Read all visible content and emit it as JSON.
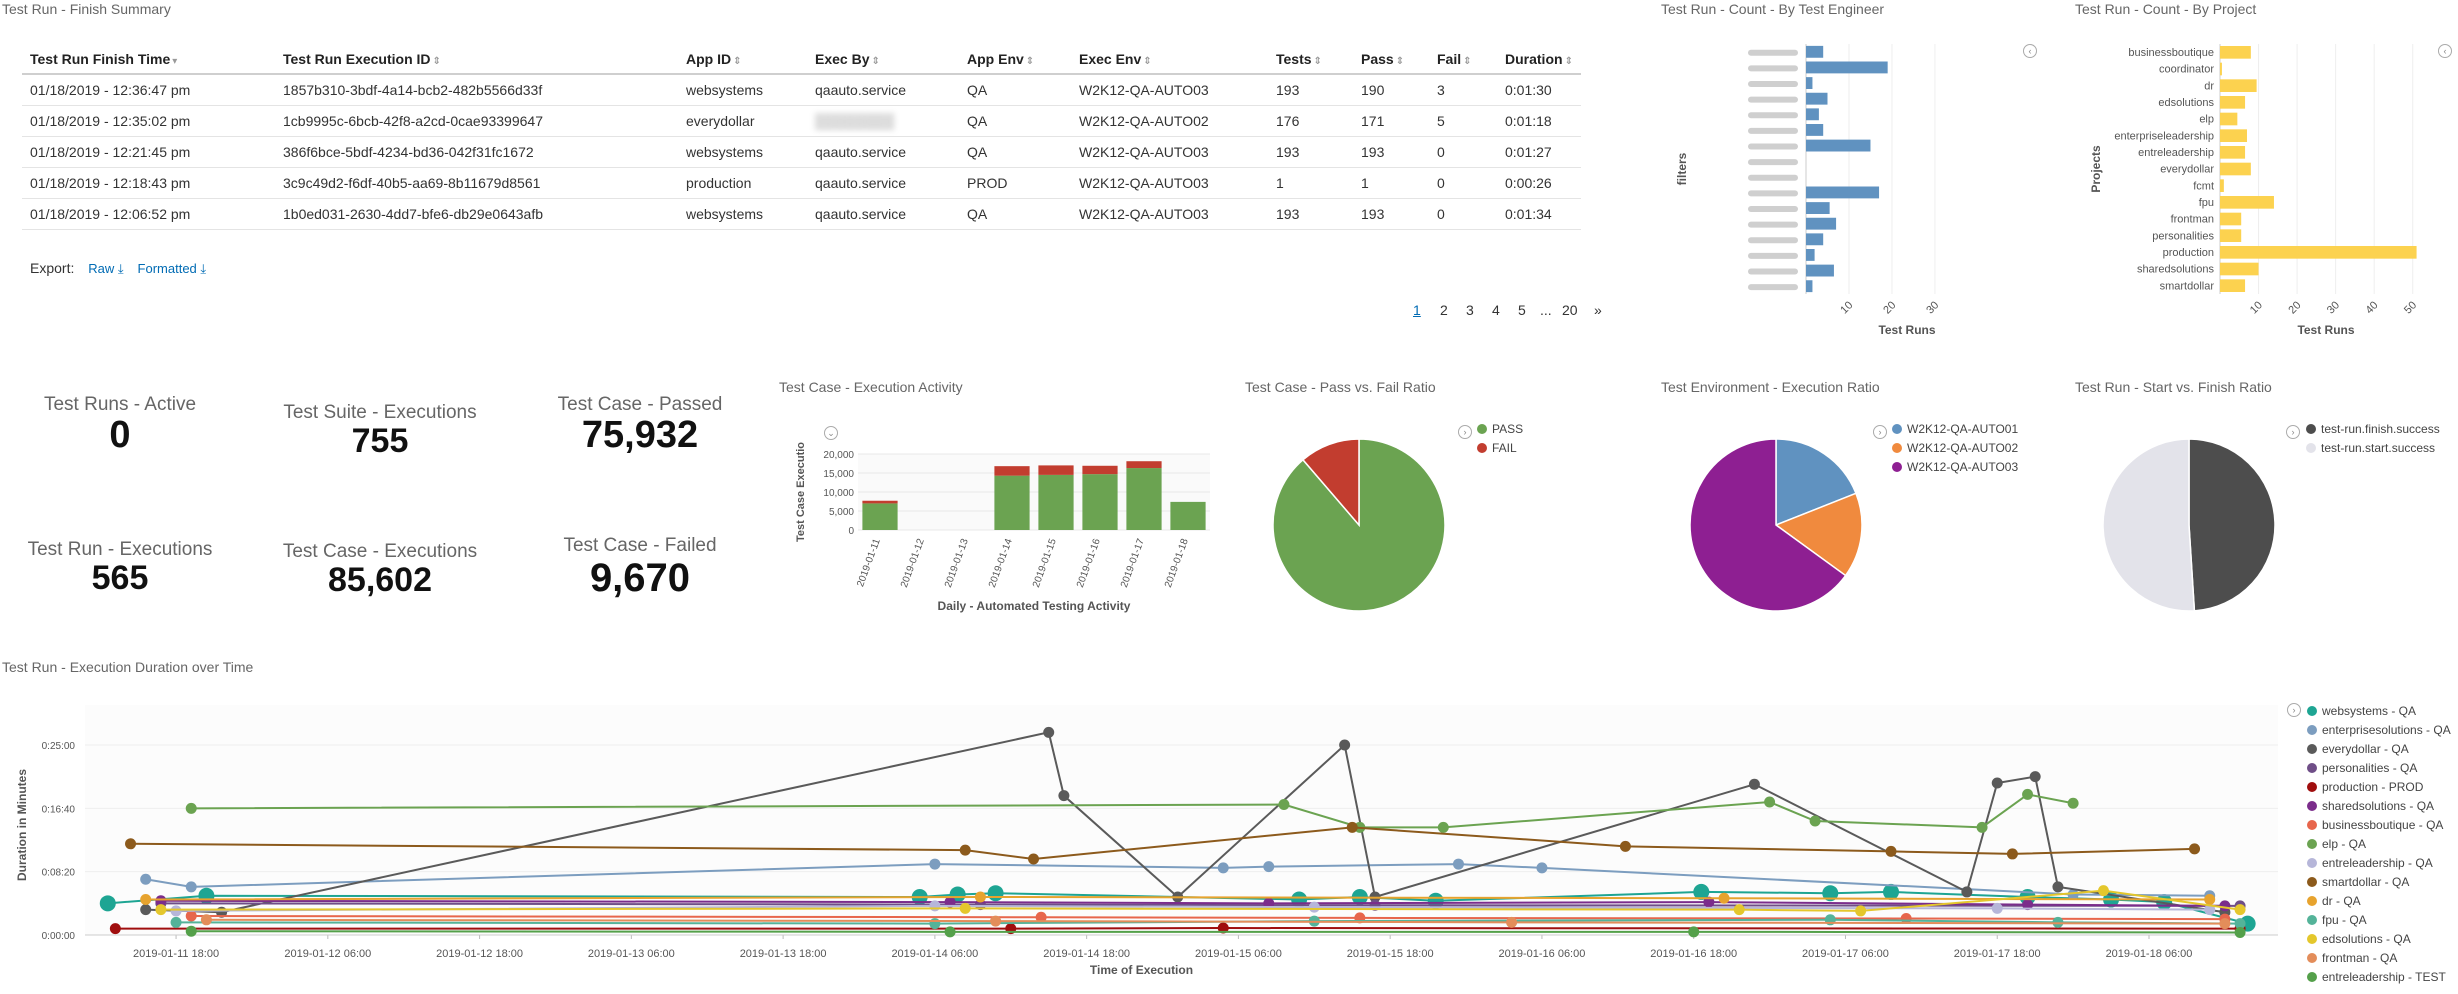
{
  "summary": {
    "title": "Test Run - Finish Summary",
    "columns": [
      "Test Run Finish Time",
      "Test Run Execution ID",
      "App ID",
      "Exec By",
      "App Env",
      "Exec Env",
      "Tests",
      "Pass",
      "Fail",
      "Duration"
    ],
    "rows": [
      [
        "01/18/2019 - 12:36:47 pm",
        "1857b310-3bdf-4a14-bcb2-482b5566d33f",
        "websystems",
        "qaauto.service",
        "QA",
        "W2K12-QA-AUTO03",
        "193",
        "190",
        "3",
        "0:01:30"
      ],
      [
        "01/18/2019 - 12:35:02 pm",
        "1cb9995c-6bcb-42f8-a2cd-0cae93399647",
        "everydollar",
        "",
        "QA",
        "W2K12-QA-AUTO02",
        "176",
        "171",
        "5",
        "0:01:18"
      ],
      [
        "01/18/2019 - 12:21:45 pm",
        "386f6bce-5bdf-4234-bd36-042f31fc1672",
        "websystems",
        "qaauto.service",
        "QA",
        "W2K12-QA-AUTO03",
        "193",
        "193",
        "0",
        "0:01:27"
      ],
      [
        "01/18/2019 - 12:18:43 pm",
        "3c9c49d2-f6df-40b5-aa69-8b11679d8561",
        "production",
        "qaauto.service",
        "PROD",
        "W2K12-QA-AUTO03",
        "1",
        "1",
        "0",
        "0:00:26"
      ],
      [
        "01/18/2019 - 12:06:52 pm",
        "1b0ed031-2630-4dd7-bfe6-db29e0643afb",
        "websystems",
        "qaauto.service",
        "QA",
        "W2K12-QA-AUTO03",
        "193",
        "193",
        "0",
        "0:01:34"
      ]
    ],
    "export_label": "Export:",
    "export_raw": "Raw",
    "export_formatted": "Formatted",
    "pages": [
      "1",
      "2",
      "3",
      "4",
      "5",
      "...",
      "20",
      "»"
    ],
    "current_page": "1"
  },
  "metrics": [
    {
      "label": "Test Runs - Active",
      "value": "0"
    },
    {
      "label": "Test Suite - Executions",
      "value": "755"
    },
    {
      "label": "Test Case - Passed",
      "value": "75,932"
    },
    {
      "label": "Test Run - Executions",
      "value": "565"
    },
    {
      "label": "Test Case - Executions",
      "value": "85,602"
    },
    {
      "label": "Test Case - Failed",
      "value": "9,670"
    }
  ],
  "colors": {
    "blue": "#6092c0",
    "yellow": "#fcd24f",
    "green": "#6ba351",
    "red": "#c23d2f",
    "orange": "#f08a3e",
    "purple": "#8e1f92",
    "grey": "#4d4d4d",
    "lightgrey": "#e3e3ea"
  },
  "chart_data": [
    {
      "type": "bar",
      "title": "Test Run - Count - By Test Engineer",
      "orientation": "horizontal",
      "xlabel": "Test Runs",
      "ylabel": "filters",
      "xlim": [
        0,
        47
      ],
      "xticks": [
        "10",
        "20",
        "30"
      ],
      "values": [
        4,
        19,
        1.5,
        5,
        3,
        4,
        15,
        0,
        0,
        17,
        5.5,
        7,
        4,
        2,
        6.5,
        1.5
      ]
    },
    {
      "type": "bar",
      "title": "Test Run - Count - By Project",
      "orientation": "horizontal",
      "xlabel": "Test Runs",
      "ylabel": "Projects",
      "xlim": [
        0,
        55
      ],
      "xticks": [
        "10",
        "20",
        "30",
        "40",
        "50"
      ],
      "categories": [
        "businessboutique",
        "coordinator",
        "dr",
        "edsolutions",
        "elp",
        "enterpriseleadership",
        "entreleadership",
        "everydollar",
        "fcmt",
        "fpu",
        "frontman",
        "personalities",
        "production",
        "sharedsolutions",
        "smartdollar"
      ],
      "values": [
        8,
        0.5,
        9.5,
        6.5,
        4.5,
        7,
        6.5,
        8,
        1,
        14,
        5.5,
        5.5,
        51,
        10,
        6.5
      ]
    },
    {
      "type": "bar",
      "stacked": true,
      "title": "Test Case - Execution Activity",
      "xlabel": "Daily - Automated Testing Activity",
      "ylabel": "Test Case Executio",
      "ylim": [
        0,
        20000
      ],
      "yticks": [
        "0",
        "5,000",
        "10,000",
        "15,000",
        "20,000"
      ],
      "categories": [
        "2019-01-11",
        "2019-01-12",
        "2019-01-13",
        "2019-01-14",
        "2019-01-15",
        "2019-01-16",
        "2019-01-17",
        "2019-01-18"
      ],
      "series": [
        {
          "name": "pass",
          "values": [
            7000,
            0,
            0,
            14300,
            14500,
            14700,
            16300,
            7400
          ]
        },
        {
          "name": "fail",
          "values": [
            700,
            0,
            0,
            2500,
            2500,
            2200,
            1800,
            0
          ]
        }
      ]
    },
    {
      "type": "pie",
      "title": "Test Case - Pass vs. Fail Ratio",
      "labels": [
        "PASS",
        "FAIL"
      ],
      "values": [
        88.7,
        11.3
      ]
    },
    {
      "type": "pie",
      "title": "Test Environment - Execution Ratio",
      "labels": [
        "W2K12-QA-AUTO01",
        "W2K12-QA-AUTO02",
        "W2K12-QA-AUTO03"
      ],
      "values": [
        19,
        16,
        65
      ]
    },
    {
      "type": "pie",
      "title": "Test Run - Start vs. Finish Ratio",
      "labels": [
        "test-run.finish.success",
        "test-run.start.success"
      ],
      "values": [
        49,
        51
      ]
    },
    {
      "type": "line",
      "title": "Test Run - Execution Duration over Time",
      "xlabel": "Time of Execution",
      "ylabel": "Duration in Minutes",
      "ylim": [
        0,
        1600
      ],
      "yticks": [
        "0:00:00",
        "0:08:20",
        "0:16:40",
        "0:25:00"
      ],
      "xticks": [
        "2019-01-11 18:00",
        "2019-01-12 06:00",
        "2019-01-12 18:00",
        "2019-01-13 06:00",
        "2019-01-13 18:00",
        "2019-01-14 06:00",
        "2019-01-14 18:00",
        "2019-01-15 06:00",
        "2019-01-15 18:00",
        "2019-01-16 06:00",
        "2019-01-16 18:00",
        "2019-01-17 06:00",
        "2019-01-17 18:00",
        "2019-01-18 06:00"
      ],
      "series": [
        {
          "name": "websystems - QA",
          "x": [
            -0.45,
            0.2,
            4.9,
            5.15,
            5.4,
            7.4,
            7.8,
            8.3,
            10.05,
            10.9,
            11.3,
            12.2,
            12.75,
            13.1,
            13.65
          ],
          "y": [
            250,
            310,
            300,
            320,
            330,
            280,
            300,
            270,
            340,
            330,
            340,
            300,
            280,
            260,
            90
          ]
        },
        {
          "name": "enterprisesolutions - QA",
          "x": [
            -0.2,
            0.1,
            5.0,
            6.9,
            7.2,
            8.45,
            9.0,
            12.5,
            13.4
          ],
          "y": [
            440,
            380,
            560,
            530,
            540,
            560,
            530,
            320,
            310
          ]
        },
        {
          "name": "everydollar - QA",
          "x": [
            -0.2,
            0.3,
            5.75,
            5.85,
            6.6,
            7.7,
            7.9,
            10.4,
            11.8,
            12.0,
            12.25,
            12.4,
            13.5
          ],
          "y": [
            200,
            180,
            1600,
            1100,
            300,
            1500,
            300,
            1190,
            340,
            1200,
            1250,
            380,
            180
          ]
        },
        {
          "name": "personalities - QA",
          "x": [
            -0.1,
            5.3,
            7.9,
            13.6
          ],
          "y": [
            250,
            240,
            235,
            230
          ]
        },
        {
          "name": "production - PROD",
          "x": [
            -0.4,
            5.5,
            6.9,
            13.6
          ],
          "y": [
            50,
            50,
            55,
            50
          ]
        },
        {
          "name": "sharedsolutions - QA",
          "x": [
            -0.1,
            5.1,
            7.2,
            10.1,
            12.2,
            13.5
          ],
          "y": [
            270,
            260,
            250,
            260,
            240,
            230
          ]
        },
        {
          "name": "businessboutique - QA",
          "x": [
            0.1,
            5.7,
            7.8,
            11.4,
            13.5
          ],
          "y": [
            150,
            140,
            135,
            130,
            125
          ]
        },
        {
          "name": "elp - QA",
          "x": [
            0.1,
            7.3,
            7.8,
            8.35,
            10.5,
            10.8,
            11.9,
            12.2,
            12.5
          ],
          "y": [
            1000,
            1030,
            850,
            850,
            1050,
            900,
            850,
            1110,
            1040
          ]
        },
        {
          "name": "entreleadership - QA",
          "x": [
            0.0,
            5.0,
            7.5,
            12.0,
            13.4
          ],
          "y": [
            190,
            230,
            220,
            210,
            200
          ]
        },
        {
          "name": "smartdollar - QA",
          "x": [
            -0.3,
            5.2,
            5.65,
            7.75,
            9.55,
            11.3,
            12.1,
            13.3
          ],
          "y": [
            720,
            670,
            600,
            850,
            700,
            660,
            640,
            680
          ]
        },
        {
          "name": "dr - QA",
          "x": [
            -0.2,
            5.3,
            10.2,
            13.4
          ],
          "y": [
            280,
            300,
            290,
            280
          ]
        },
        {
          "name": "fpu - QA",
          "x": [
            0.0,
            5.0,
            7.5,
            10.9,
            12.4,
            13.6
          ],
          "y": [
            100,
            90,
            110,
            120,
            100,
            90
          ]
        },
        {
          "name": "edsolutions - QA",
          "x": [
            -0.1,
            5.2,
            10.3,
            11.1,
            12.7,
            13.6
          ],
          "y": [
            200,
            210,
            200,
            190,
            350,
            200
          ]
        },
        {
          "name": "frontman - QA",
          "x": [
            0.2,
            5.4,
            8.8,
            13.5
          ],
          "y": [
            120,
            110,
            100,
            90
          ]
        },
        {
          "name": "entreleadership - TEST",
          "x": [
            0.1,
            5.1,
            10.0,
            13.6
          ],
          "y": [
            30,
            25,
            25,
            20
          ]
        }
      ]
    }
  ]
}
